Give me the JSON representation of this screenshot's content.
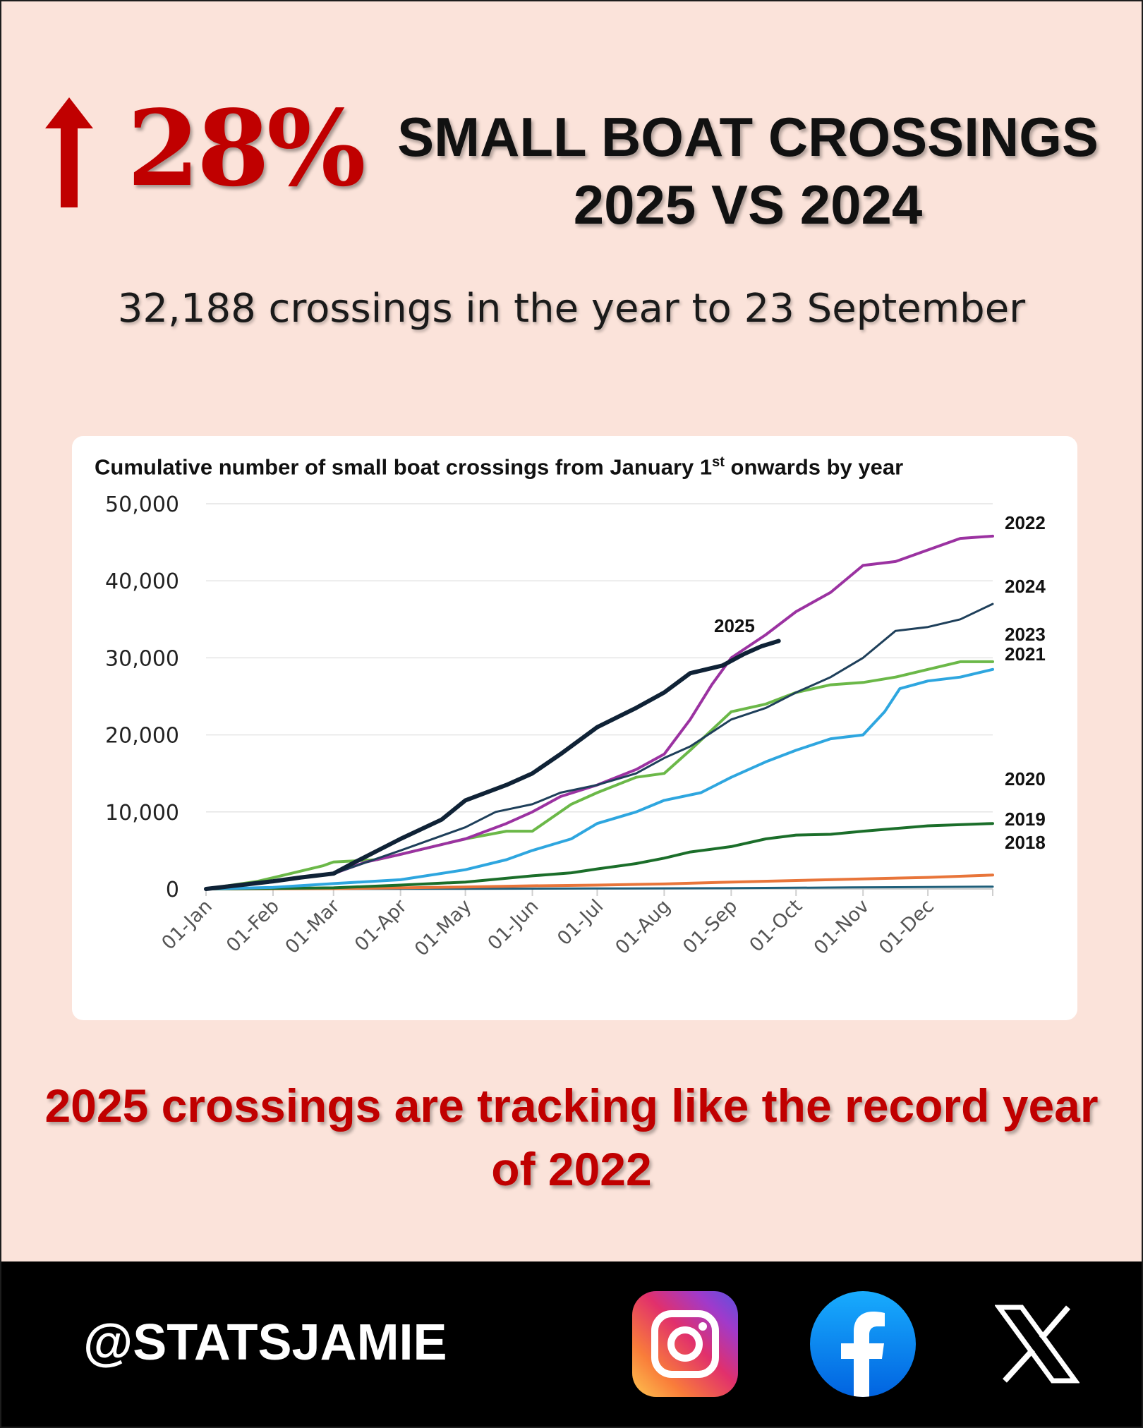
{
  "headline": {
    "arrow_icon": "up-arrow-icon",
    "percent": "28%",
    "title_line1": "SMALL BOAT CROSSINGS",
    "title_line2": "2025 VS 2024"
  },
  "subtitle": "32,188 crossings in the year to 23 September",
  "takeaway": "2025 crossings are tracking like the record year of 2022",
  "footer": {
    "handle": "@STATSJAMIE",
    "social_icons": [
      "instagram-icon",
      "facebook-icon",
      "x-icon"
    ]
  },
  "colors": {
    "background": "#fbe3da",
    "accent_red": "#c00000",
    "footer": "#000000"
  },
  "chart_data": {
    "type": "line",
    "title": "Cumulative number of small boat crossings from January 1",
    "title_sup": "st",
    "title_suffix": " onwards by year",
    "xlabel": "",
    "ylabel": "",
    "ylim": [
      0,
      50000
    ],
    "yticks": [
      0,
      10000,
      20000,
      30000,
      40000,
      50000
    ],
    "ytick_labels": [
      "0",
      "10,000",
      "20,000",
      "30,000",
      "40,000",
      "50,000"
    ],
    "x_unit": "day of year",
    "xlim": [
      1,
      365
    ],
    "xticks": [
      1,
      32,
      60,
      91,
      121,
      152,
      182,
      213,
      244,
      274,
      305,
      335
    ],
    "xtick_labels": [
      "01-Jan",
      "01-Feb",
      "01-Mar",
      "01-Apr",
      "01-May",
      "01-Jun",
      "01-Jul",
      "01-Aug",
      "01-Sep",
      "01-Oct",
      "01-Nov",
      "01-Dec"
    ],
    "grid": "horizontal",
    "legend": "direct labels at right",
    "series": [
      {
        "name": "2018",
        "color": "#1f5f7a",
        "width": 3,
        "x": [
          1,
          60,
          120,
          180,
          240,
          300,
          365
        ],
        "y": [
          0,
          10,
          30,
          60,
          100,
          200,
          300
        ]
      },
      {
        "name": "2019",
        "color": "#e8753a",
        "width": 4,
        "x": [
          1,
          60,
          90,
          120,
          150,
          182,
          213,
          244,
          274,
          305,
          335,
          365
        ],
        "y": [
          0,
          50,
          150,
          250,
          400,
          500,
          650,
          900,
          1100,
          1300,
          1500,
          1800
        ]
      },
      {
        "name": "2020",
        "color": "#1b6e2a",
        "width": 4,
        "x": [
          1,
          60,
          91,
          121,
          152,
          170,
          182,
          200,
          213,
          225,
          244,
          260,
          274,
          290,
          305,
          335,
          365
        ],
        "y": [
          0,
          150,
          500,
          900,
          1700,
          2100,
          2600,
          3300,
          4000,
          4800,
          5500,
          6500,
          7000,
          7100,
          7500,
          8200,
          8500
        ]
      },
      {
        "name": "2021",
        "color": "#2ea6df",
        "width": 4,
        "x": [
          1,
          32,
          60,
          91,
          121,
          140,
          152,
          170,
          182,
          200,
          213,
          230,
          244,
          260,
          274,
          290,
          305,
          315,
          322,
          335,
          350,
          365
        ],
        "y": [
          0,
          200,
          700,
          1200,
          2500,
          3800,
          5000,
          6500,
          8500,
          10000,
          11500,
          12500,
          14500,
          16500,
          18000,
          19500,
          20000,
          23000,
          26000,
          27000,
          27500,
          28500
        ]
      },
      {
        "name": "2022",
        "color": "#9b32a1",
        "width": 4,
        "x": [
          1,
          32,
          60,
          75,
          91,
          121,
          140,
          152,
          165,
          182,
          200,
          213,
          225,
          235,
          244,
          260,
          274,
          290,
          305,
          320,
          335,
          350,
          365
        ],
        "y": [
          0,
          1000,
          2000,
          3500,
          4500,
          6500,
          8500,
          10000,
          12000,
          13500,
          15500,
          17500,
          22000,
          26500,
          30000,
          33000,
          36000,
          38500,
          42000,
          42500,
          44000,
          45500,
          45800
        ]
      },
      {
        "name": "2023",
        "color": "#6bb848",
        "width": 4,
        "x": [
          1,
          25,
          40,
          55,
          60,
          80,
          91,
          121,
          140,
          152,
          170,
          182,
          200,
          213,
          225,
          244,
          260,
          274,
          290,
          305,
          320,
          335,
          350,
          365
        ],
        "y": [
          0,
          1000,
          2000,
          3000,
          3500,
          3800,
          4500,
          6500,
          7500,
          7500,
          11000,
          12500,
          14500,
          15000,
          18000,
          23000,
          24000,
          25500,
          26500,
          26800,
          27500,
          28500,
          29500,
          29500
        ]
      },
      {
        "name": "2024",
        "color": "#1e3f5a",
        "width": 3,
        "x": [
          1,
          32,
          60,
          91,
          121,
          135,
          152,
          165,
          182,
          200,
          213,
          225,
          244,
          260,
          274,
          290,
          305,
          320,
          335,
          350,
          365
        ],
        "y": [
          0,
          1000,
          2000,
          5000,
          8000,
          10000,
          11000,
          12500,
          13500,
          15000,
          17000,
          18500,
          22000,
          23500,
          25500,
          27500,
          30000,
          33500,
          34000,
          35000,
          37000
        ]
      },
      {
        "name": "2025",
        "color": "#0f2236",
        "width": 6,
        "x": [
          1,
          32,
          45,
          60,
          70,
          91,
          110,
          121,
          140,
          152,
          165,
          182,
          200,
          213,
          225,
          240,
          250,
          258,
          266
        ],
        "y": [
          0,
          1000,
          1500,
          2000,
          3500,
          6500,
          9000,
          11500,
          13500,
          15000,
          17500,
          21000,
          23500,
          25500,
          28000,
          29000,
          30500,
          31500,
          32188
        ]
      }
    ],
    "series_labels": [
      {
        "name": "2022",
        "label": "2022"
      },
      {
        "name": "2024",
        "label": "2024"
      },
      {
        "name": "2023",
        "label": "2023"
      },
      {
        "name": "2021",
        "label": "2021"
      },
      {
        "name": "2020",
        "label": "2020"
      },
      {
        "name": "2019",
        "label": "2019"
      },
      {
        "name": "2018",
        "label": "2018"
      },
      {
        "name": "2025",
        "label": "2025"
      }
    ]
  }
}
